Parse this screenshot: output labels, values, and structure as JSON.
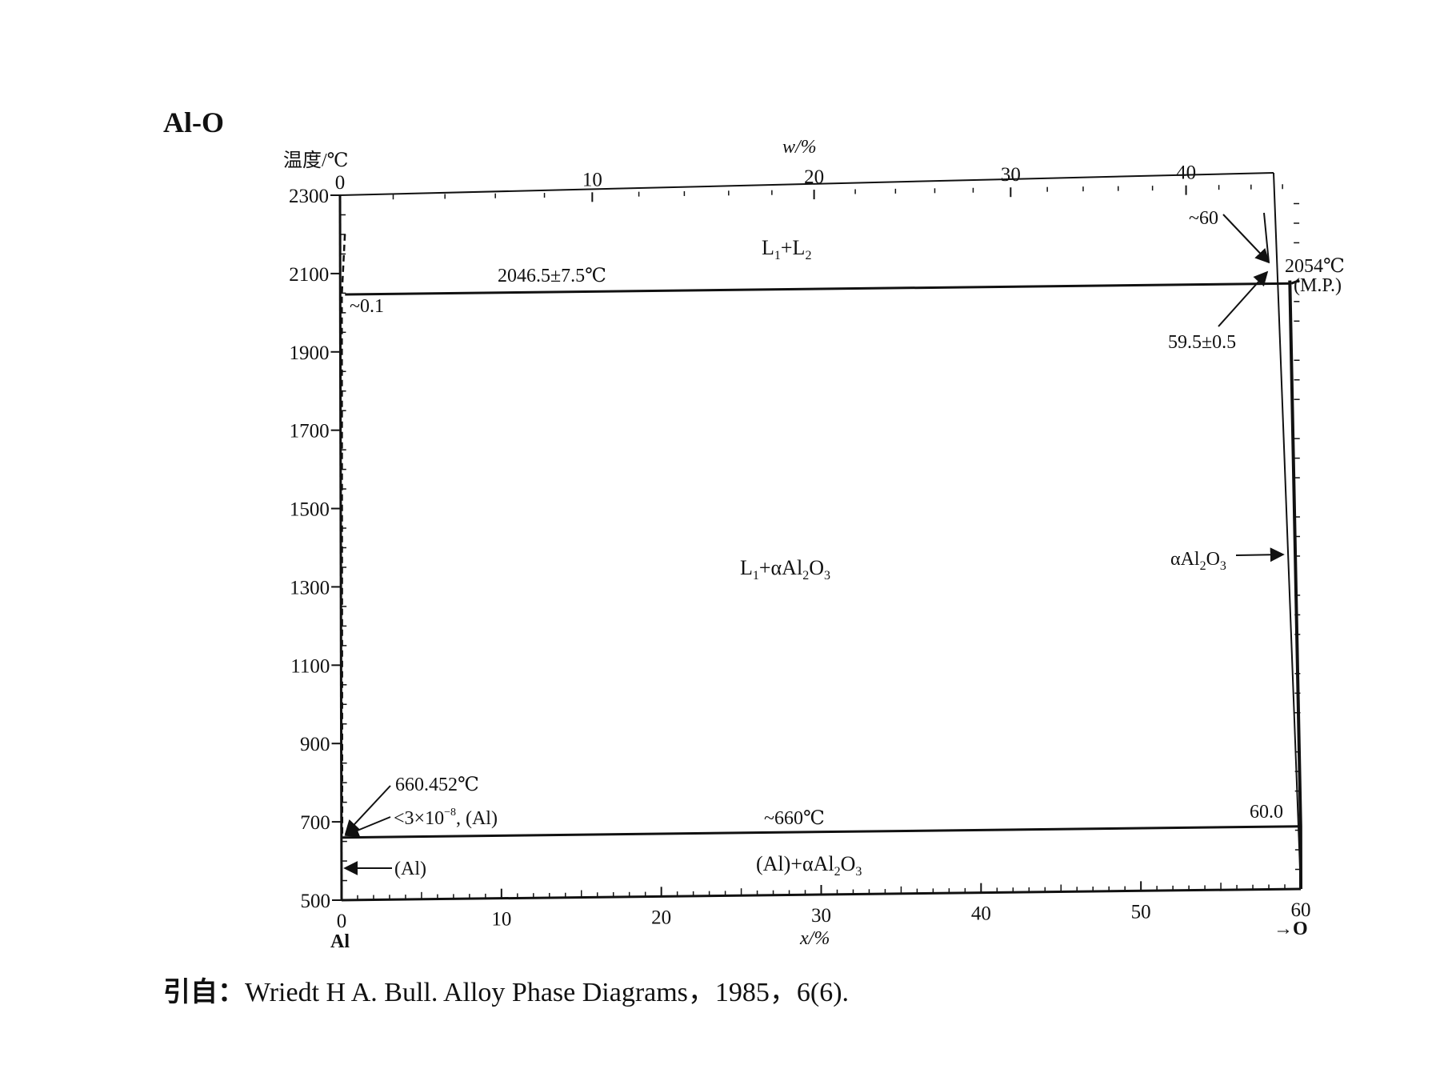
{
  "title": "Al-O",
  "chart_data": {
    "type": "phase-diagram",
    "y_axis": {
      "label": "温度/℃",
      "range": [
        500,
        2300
      ],
      "ticks": [
        500,
        700,
        900,
        1100,
        1300,
        1500,
        1700,
        1900,
        2100,
        2300
      ]
    },
    "x_axis_bottom": {
      "label": "x/%",
      "range": [
        0,
        60
      ],
      "ticks": [
        0,
        10,
        20,
        30,
        40,
        50,
        60
      ],
      "left_end_label": "Al",
      "right_end_label": "→O"
    },
    "x_axis_top": {
      "label": "w/%",
      "ticks": [
        0,
        10,
        20,
        30,
        40
      ]
    },
    "invariant_lines": [
      {
        "T": 2046.5,
        "x_start": 0.3,
        "x_end": 59.5,
        "label": "2046.5±7.5℃"
      },
      {
        "T": 660,
        "x_start": 0,
        "x_end": 60.0,
        "label": "~660℃"
      }
    ],
    "boundaries": {
      "dashed_solubility": [
        [
          0.1,
          2046.5
        ],
        [
          0.3,
          2200
        ],
        [
          0.05,
          660
        ]
      ],
      "liquidus_L2": [
        [
          59.5,
          2046.5
        ],
        [
          60.0,
          2054
        ]
      ],
      "alpha_Al2O3_phase": [
        [
          59.4,
          2054
        ],
        [
          60.0,
          660
        ],
        [
          60.0,
          500
        ]
      ]
    },
    "annotations": {
      "monotectic_left": "~0.1",
      "monotectic_right": "59.5±0.5",
      "critical": "~60",
      "melting_point_T": "2054℃",
      "melting_point_tag": "(M.P.)",
      "eutectic_T": "660.452℃",
      "solubility_prefix": "<3×10",
      "solubility_exp": "−8",
      "solubility_suffix": ", (Al)",
      "al_phase": "(Al)",
      "eutectic_x": "60.0",
      "alpha_label_main": "αAl",
      "alpha_sub1": "2",
      "alpha_mid": "O",
      "alpha_sub2": "3"
    },
    "regions": {
      "L1_L2": {
        "a": "L",
        "a_sub": "1",
        "b": "+L",
        "b_sub": "2"
      },
      "L1_alpha": {
        "a": "L",
        "a_sub": "1",
        "b": "+αAl",
        "b_sub1": "2",
        "c": "O",
        "c_sub2": "3"
      },
      "Al_alpha": {
        "a": "(Al)+αAl",
        "a_sub1": "2",
        "b": "O",
        "b_sub2": "3"
      }
    }
  },
  "citation": {
    "prefix": "引自：",
    "text": "Wriedt H A.  Bull.  Alloy Phase Diagrams，1985，6(6)."
  }
}
